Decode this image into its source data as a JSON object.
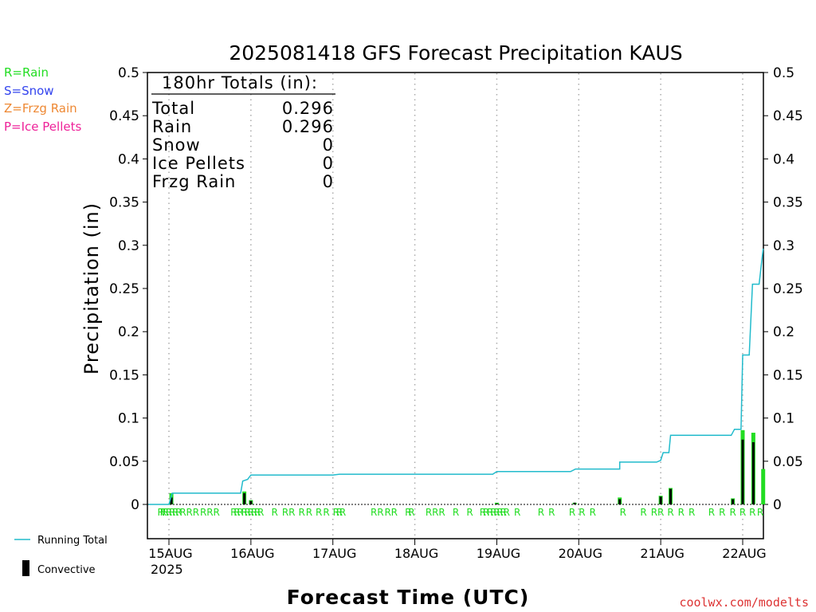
{
  "chart_data": {
    "type": "bar",
    "title": "2025081418 GFS Forecast Precipitation KAUS",
    "xlabel": "Forecast Time (UTC)",
    "ylabel": "Precipitation (in)",
    "ylim": [
      0,
      0.5
    ],
    "y_ticks": [
      "0",
      "0.05",
      "0.1",
      "0.15",
      "0.2",
      "0.25",
      "0.3",
      "0.35",
      "0.4",
      "0.45",
      "0.5"
    ],
    "x_unit": "days since 15AUG 00Z",
    "xlim": [
      -0.25,
      7.25
    ],
    "x_ticks": [
      {
        "x": 0,
        "label": "15AUG"
      },
      {
        "x": 1,
        "label": "16AUG"
      },
      {
        "x": 2,
        "label": "17AUG"
      },
      {
        "x": 3,
        "label": "18AUG"
      },
      {
        "x": 4,
        "label": "19AUG"
      },
      {
        "x": 5,
        "label": "20AUG"
      },
      {
        "x": 6,
        "label": "21AUG"
      },
      {
        "x": 7,
        "label": "22AUG"
      }
    ],
    "year_label": "2025",
    "grid": "vertical dotted at day boundaries",
    "totals": {
      "heading": "180hr Totals (in):",
      "rows": [
        {
          "label": "Total",
          "value": "0.296"
        },
        {
          "label": "Rain",
          "value": "0.296"
        },
        {
          "label": "Snow",
          "value": "0"
        },
        {
          "label": "Ice Pellets",
          "value": "0"
        },
        {
          "label": "Frzg Rain",
          "value": "0"
        }
      ]
    },
    "type_legend": [
      {
        "text": "R=Rain",
        "color": "#22dd22"
      },
      {
        "text": "S=Snow",
        "color": "#3344ee"
      },
      {
        "text": "Z=Frzg Rain",
        "color": "#ee8833"
      },
      {
        "text": "P=Ice Pellets",
        "color": "#ee2299"
      }
    ],
    "series": [
      {
        "name": "Running Total",
        "color": "#22bbcc",
        "points": [
          [
            -0.25,
            0.0
          ],
          [
            0.0,
            0.0
          ],
          [
            0.04,
            0.013
          ],
          [
            0.75,
            0.013
          ],
          [
            0.875,
            0.013
          ],
          [
            0.9,
            0.027
          ],
          [
            0.96,
            0.029
          ],
          [
            1.0,
            0.034
          ],
          [
            2.0,
            0.034
          ],
          [
            2.08,
            0.035
          ],
          [
            3.0,
            0.035
          ],
          [
            3.95,
            0.035
          ],
          [
            4.0,
            0.038
          ],
          [
            4.9,
            0.038
          ],
          [
            4.96,
            0.041
          ],
          [
            5.5,
            0.041
          ],
          [
            5.5,
            0.049
          ],
          [
            5.95,
            0.049
          ],
          [
            6.0,
            0.051
          ],
          [
            6.03,
            0.06
          ],
          [
            6.1,
            0.06
          ],
          [
            6.12,
            0.08
          ],
          [
            6.86,
            0.08
          ],
          [
            6.9,
            0.087
          ],
          [
            6.98,
            0.087
          ],
          [
            7.0,
            0.173
          ],
          [
            7.08,
            0.173
          ],
          [
            7.12,
            0.255
          ],
          [
            7.2,
            0.255
          ],
          [
            7.25,
            0.296
          ]
        ]
      },
      {
        "name": "Precipitation",
        "color": "#22dd22",
        "bars": [
          [
            0.03,
            0.013
          ],
          [
            0.92,
            0.015
          ],
          [
            1.0,
            0.005
          ],
          [
            4.0,
            0.002
          ],
          [
            4.95,
            0.002
          ],
          [
            5.5,
            0.008
          ],
          [
            6.0,
            0.01
          ],
          [
            6.12,
            0.019
          ],
          [
            6.88,
            0.007
          ],
          [
            7.0,
            0.086
          ],
          [
            7.13,
            0.083
          ],
          [
            7.25,
            0.041
          ]
        ]
      },
      {
        "name": "Convective",
        "color": "#000000",
        "bars": [
          [
            0.03,
            0.008
          ],
          [
            0.92,
            0.013
          ],
          [
            1.0,
            0.004
          ],
          [
            4.0,
            0.001
          ],
          [
            4.95,
            0.002
          ],
          [
            5.5,
            0.006
          ],
          [
            6.0,
            0.009
          ],
          [
            6.12,
            0.018
          ],
          [
            6.88,
            0.006
          ],
          [
            7.0,
            0.075
          ],
          [
            7.13,
            0.072
          ]
        ]
      }
    ],
    "type_marks": {
      "symbol": "R",
      "x": [
        -0.1,
        -0.07,
        -0.04,
        0.0,
        0.04,
        0.08,
        0.12,
        0.17,
        0.25,
        0.33,
        0.42,
        0.5,
        0.58,
        0.79,
        0.83,
        0.87,
        0.92,
        0.96,
        1.0,
        1.04,
        1.08,
        1.12,
        1.29,
        1.42,
        1.5,
        1.62,
        1.71,
        1.83,
        1.92,
        2.04,
        2.08,
        2.12,
        2.5,
        2.58,
        2.67,
        2.75,
        2.92,
        2.96,
        3.17,
        3.25,
        3.33,
        3.5,
        3.67,
        3.83,
        3.87,
        3.92,
        3.96,
        4.0,
        4.04,
        4.08,
        4.12,
        4.25,
        4.54,
        4.67,
        4.92,
        5.04,
        5.17,
        5.54,
        5.79,
        5.92,
        6.0,
        6.12,
        6.25,
        6.38,
        6.62,
        6.75,
        6.88,
        7.0,
        7.12,
        7.25
      ]
    },
    "bottom_legend": [
      {
        "text": "Running Total",
        "style": "line",
        "color": "#22bbcc"
      },
      {
        "text": "Convective",
        "style": "bar",
        "color": "#000000"
      }
    ]
  },
  "footer": {
    "credit": "coolwx.com/modelts"
  }
}
